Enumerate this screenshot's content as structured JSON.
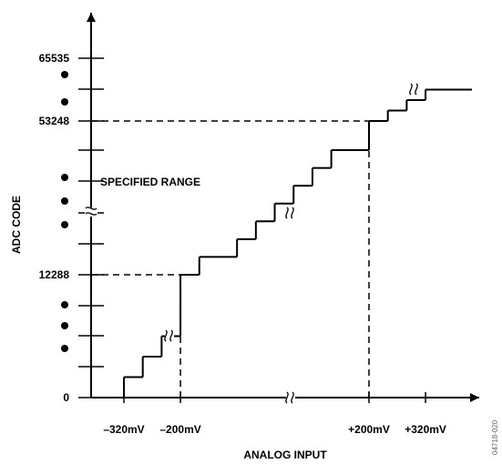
{
  "chart_data": {
    "type": "line",
    "title": "",
    "xlabel": "ANALOG INPUT",
    "ylabel": "ADC CODE",
    "annotation": "SPECIFIED RANGE",
    "figure_id": "04718-020",
    "x_tick_labels": [
      {
        "x": -320,
        "label": "–320mV"
      },
      {
        "x": -200,
        "label": "–200mV"
      },
      {
        "x": 200,
        "label": "+200mV"
      },
      {
        "x": 320,
        "label": "+320mV"
      }
    ],
    "y_tick_labels": [
      {
        "y": 0,
        "label": "0"
      },
      {
        "y": 12288,
        "label": "12288"
      },
      {
        "y": 53248,
        "label": "53248"
      },
      {
        "y": 65535,
        "label": "65535"
      }
    ],
    "series": [
      {
        "style": "staircase",
        "points": [
          {
            "x": -320,
            "y": 0
          },
          {
            "x": -320,
            "y": 2048
          },
          {
            "x": -280,
            "y": 2048
          },
          {
            "x": -280,
            "y": 4096
          },
          {
            "x": -240,
            "y": 4096
          },
          {
            "x": -240,
            "y": 6144
          },
          {
            "x": -200,
            "y": 6144
          },
          {
            "x": -200,
            "y": 12288
          },
          {
            "x": -160,
            "y": 12288
          },
          {
            "x": -160,
            "y": 14336
          },
          {
            "x": -80,
            "y": 14336
          },
          {
            "x": -80,
            "y": 16384
          },
          {
            "x": -40,
            "y": 16384
          },
          {
            "x": -40,
            "y": 18432
          },
          {
            "x": 0,
            "y": 18432
          },
          {
            "x": 0,
            "y": 20480
          },
          {
            "x": 40,
            "y": 20480
          },
          {
            "x": 40,
            "y": 22528
          },
          {
            "x": 80,
            "y": 22528
          },
          {
            "x": 80,
            "y": 24576
          },
          {
            "x": 120,
            "y": 24576
          },
          {
            "x": 120,
            "y": 26624
          },
          {
            "x": 200,
            "y": 26624
          },
          {
            "x": 200,
            "y": 53248
          },
          {
            "x": 240,
            "y": 53248
          },
          {
            "x": 240,
            "y": 55296
          },
          {
            "x": 280,
            "y": 55296
          },
          {
            "x": 280,
            "y": 57344
          },
          {
            "x": 320,
            "y": 57344
          },
          {
            "x": 320,
            "y": 59392
          },
          {
            "x": 400,
            "y": 59392
          }
        ]
      }
    ],
    "reference_lines": [
      {
        "from": {
          "x": -360,
          "y": 12288
        },
        "to": {
          "x": -200,
          "y": 12288
        }
      },
      {
        "from": {
          "x": -200,
          "y": 0
        },
        "to": {
          "x": -200,
          "y": 12288
        }
      },
      {
        "from": {
          "x": -360,
          "y": 53248
        },
        "to": {
          "x": 200,
          "y": 53248
        }
      },
      {
        "from": {
          "x": 200,
          "y": 0
        },
        "to": {
          "x": 200,
          "y": 53248
        }
      }
    ],
    "axis_breaks": [
      {
        "axis": "x",
        "between": [
          -200,
          200
        ]
      },
      {
        "axis": "y",
        "between": [
          12288,
          53248
        ]
      }
    ],
    "ellipsis_dots": true,
    "grid": false
  }
}
